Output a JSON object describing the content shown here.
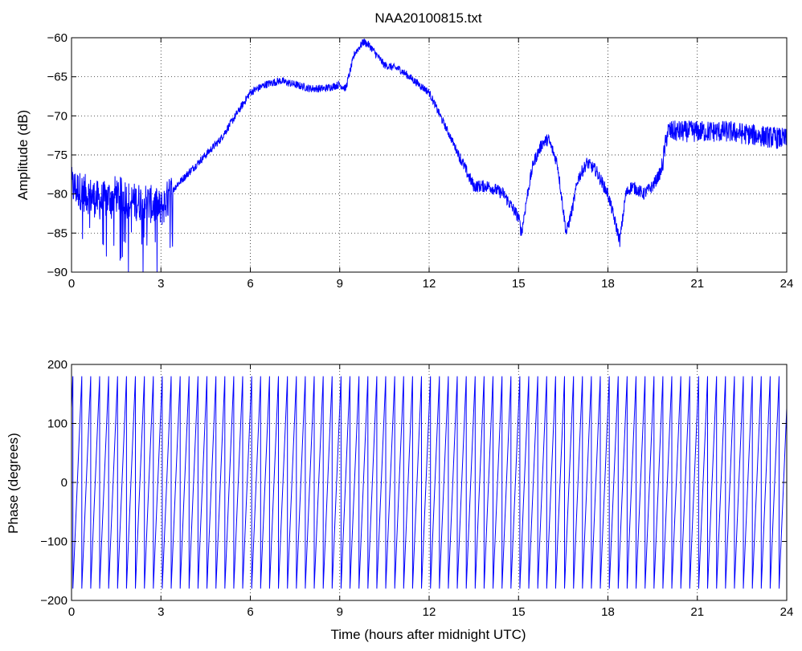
{
  "figure": {
    "title": "NAA20100815.txt"
  },
  "chart_data": [
    {
      "type": "line",
      "title": "NAA20100815.txt",
      "xlabel": "",
      "ylabel": "Amplitude (dB)",
      "xlim": [
        0,
        24
      ],
      "ylim": [
        -90,
        -60
      ],
      "xticks": [
        0,
        3,
        6,
        9,
        12,
        15,
        18,
        21,
        24
      ],
      "xtick_labels": [
        "0",
        "3",
        "6",
        "9",
        "12",
        "15",
        "18",
        "21",
        "24"
      ],
      "yticks": [
        -90,
        -85,
        -80,
        -75,
        -70,
        -65,
        -60
      ],
      "ytick_labels": [
        "−90",
        "−85",
        "−80",
        "−75",
        "−70",
        "−65",
        "−60"
      ],
      "grid": true,
      "series": [
        {
          "color": "#0000ff",
          "x": [
            0,
            0.5,
            1,
            1.5,
            2,
            2.5,
            3,
            3.5,
            4,
            4.5,
            5,
            5.5,
            6,
            6.5,
            7,
            7.5,
            8,
            8.5,
            9,
            9.2,
            9.5,
            9.8,
            10,
            10.5,
            11,
            11.5,
            12,
            12.5,
            13,
            13.3,
            13.5,
            14,
            14.5,
            15,
            15.1,
            15.3,
            15.5,
            15.8,
            16,
            16.3,
            16.6,
            16.8,
            17,
            17.3,
            17.6,
            18,
            18.4,
            18.6,
            18.8,
            19.2,
            19.5,
            19.8,
            20,
            21,
            22,
            23,
            24
          ],
          "y": [
            -79,
            -80,
            -81,
            -80,
            -81,
            -81,
            -82,
            -79,
            -77,
            -75,
            -73,
            -70,
            -67,
            -66,
            -65.5,
            -66,
            -66.5,
            -66.5,
            -66,
            -66.5,
            -62,
            -60.5,
            -61,
            -63.5,
            -64,
            -65.5,
            -67,
            -71,
            -75,
            -77.5,
            -79,
            -79,
            -80,
            -83,
            -85,
            -80,
            -76,
            -73.5,
            -73,
            -76,
            -85,
            -82,
            -78,
            -76,
            -77,
            -80,
            -86,
            -80,
            -79,
            -80,
            -79,
            -77,
            -72,
            -72,
            -72,
            -72.5,
            -73
          ]
        }
      ]
    },
    {
      "type": "line",
      "title": "",
      "xlabel": "Time (hours after midnight UTC)",
      "ylabel": "Phase (degrees)",
      "xlim": [
        0,
        24
      ],
      "ylim": [
        -200,
        200
      ],
      "xticks": [
        0,
        3,
        6,
        9,
        12,
        15,
        18,
        21,
        24
      ],
      "xtick_labels": [
        "0",
        "3",
        "6",
        "9",
        "12",
        "15",
        "18",
        "21",
        "24"
      ],
      "yticks": [
        -200,
        -100,
        0,
        100,
        200
      ],
      "ytick_labels": [
        "−200",
        "−100",
        "0",
        "100",
        "200"
      ],
      "grid": true,
      "series": [
        {
          "color": "#0000ff",
          "wrap_period_hours": 0.3,
          "phase_range_deg": [
            -180,
            180
          ],
          "description_of_shape": "sawtooth"
        }
      ]
    }
  ]
}
